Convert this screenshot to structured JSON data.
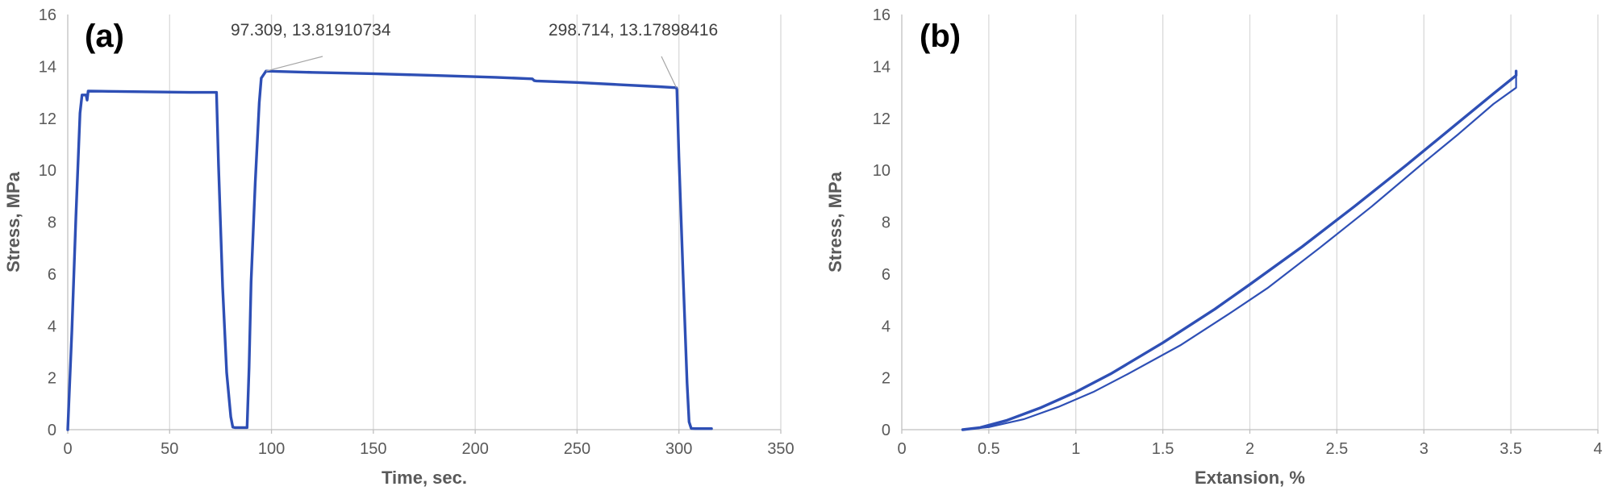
{
  "chart_data": [
    {
      "type": "line",
      "panel_label": "(a)",
      "xlabel": "Time, sec.",
      "ylabel": "Stress, MPa",
      "xlim": [
        0,
        350
      ],
      "ylim": [
        0,
        16
      ],
      "xticks": [
        0,
        50,
        100,
        150,
        200,
        250,
        300,
        350
      ],
      "yticks": [
        0,
        2,
        4,
        6,
        8,
        10,
        12,
        14,
        16
      ],
      "grid": "vertical",
      "series": [
        {
          "color": "#2e4fb5",
          "x": [
            0,
            2,
            4,
            6,
            7,
            9,
            9.5,
            10,
            10.5,
            20,
            40,
            60,
            73,
            74,
            76,
            78,
            80,
            81,
            82,
            84,
            86,
            88,
            89,
            90,
            92,
            94,
            95,
            97.309,
            120,
            150,
            180,
            210,
            228,
            229,
            230,
            250,
            270,
            290,
            298.714,
            299,
            300,
            302,
            304,
            305,
            306,
            308,
            312,
            316
          ],
          "y": [
            0,
            3.8,
            8.2,
            12.2,
            12.9,
            12.9,
            12.7,
            13.05,
            13.05,
            13.04,
            13.02,
            13.0,
            13.0,
            10.2,
            5.5,
            2.2,
            0.5,
            0.1,
            0.08,
            0.08,
            0.08,
            0.08,
            2.4,
            5.7,
            9.5,
            12.6,
            13.55,
            13.82,
            13.77,
            13.72,
            13.65,
            13.58,
            13.52,
            13.45,
            13.44,
            13.38,
            13.3,
            13.22,
            13.18,
            13.1,
            10.5,
            6.0,
            1.8,
            0.3,
            0.05,
            0.04,
            0.04,
            0.04
          ]
        }
      ],
      "annotations": [
        {
          "text": "97.309, 13.81910734",
          "x": 97.309,
          "y": 13.81910734
        },
        {
          "text": "298.714, 13.17898416",
          "x": 298.714,
          "y": 13.17898416
        }
      ]
    },
    {
      "type": "line",
      "panel_label": "(b)",
      "xlabel": "Extansion, %",
      "ylabel": "Stress, MPa",
      "xlim": [
        0,
        4
      ],
      "ylim": [
        0,
        16
      ],
      "xticks": [
        "0",
        "0.5",
        "1",
        "1.5",
        "2",
        "2.5",
        "3",
        "3.5",
        "4"
      ],
      "yticks": [
        0,
        2,
        4,
        6,
        8,
        10,
        12,
        14,
        16
      ],
      "grid": "vertical",
      "series": [
        {
          "color": "#2e4fb5",
          "x": [
            0.35,
            0.45,
            0.6,
            0.8,
            1.0,
            1.2,
            1.5,
            1.8,
            2.0,
            2.3,
            2.6,
            2.9,
            3.2,
            3.4,
            3.53,
            3.53
          ],
          "y": [
            0,
            0.08,
            0.35,
            0.85,
            1.45,
            2.15,
            3.35,
            4.65,
            5.6,
            7.05,
            8.6,
            10.2,
            11.85,
            12.95,
            13.65,
            13.82
          ]
        },
        {
          "color": "#2e4fb5",
          "x": [
            3.53,
            3.53,
            3.4,
            3.2,
            3.0,
            2.7,
            2.4,
            2.1,
            1.9,
            1.6,
            1.3,
            1.1,
            0.9,
            0.7,
            0.5,
            0.35
          ],
          "y": [
            13.82,
            13.18,
            12.55,
            11.4,
            10.3,
            8.6,
            7.0,
            5.45,
            4.55,
            3.25,
            2.15,
            1.45,
            0.88,
            0.4,
            0.1,
            0
          ]
        }
      ]
    }
  ]
}
